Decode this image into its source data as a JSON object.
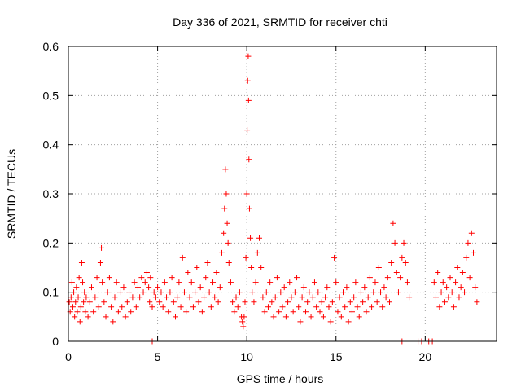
{
  "chart_data": {
    "type": "scatter",
    "title": "Day 336 of 2021, SRMTID for receiver chti",
    "xlabel": "GPS time / hours",
    "ylabel": "SRMTID / TECUs",
    "xlim": [
      0,
      24
    ],
    "ylim": [
      0,
      0.6
    ],
    "xticks": [
      0,
      5,
      10,
      15,
      20
    ],
    "xtick_labels": [
      "0",
      "5",
      "10",
      "15",
      "20"
    ],
    "yticks": [
      0,
      0.1,
      0.2,
      0.3,
      0.4,
      0.5,
      0.6
    ],
    "ytick_labels": [
      "0",
      "0.1",
      "0.2",
      "0.3",
      "0.4",
      "0.5",
      "0.6"
    ],
    "grid": true,
    "marker": "+",
    "series": [
      {
        "name": "SRMTID",
        "color": "#ff0000",
        "points": [
          [
            0.05,
            0.08
          ],
          [
            0.1,
            0.06
          ],
          [
            0.15,
            0.09
          ],
          [
            0.2,
            0.12
          ],
          [
            0.25,
            0.07
          ],
          [
            0.3,
            0.1
          ],
          [
            0.35,
            0.05
          ],
          [
            0.4,
            0.08
          ],
          [
            0.45,
            0.11
          ],
          [
            0.5,
            0.06
          ],
          [
            0.55,
            0.09
          ],
          [
            0.6,
            0.13
          ],
          [
            0.65,
            0.04
          ],
          [
            0.7,
            0.07
          ],
          [
            0.75,
            0.16
          ],
          [
            0.8,
            0.12
          ],
          [
            0.85,
            0.08
          ],
          [
            0.9,
            0.1
          ],
          [
            0.95,
            0.06
          ],
          [
            1.0,
            0.09
          ],
          [
            1.1,
            0.05
          ],
          [
            1.2,
            0.08
          ],
          [
            1.3,
            0.11
          ],
          [
            1.4,
            0.06
          ],
          [
            1.5,
            0.09
          ],
          [
            1.6,
            0.13
          ],
          [
            1.7,
            0.07
          ],
          [
            1.8,
            0.16
          ],
          [
            1.85,
            0.19
          ],
          [
            1.9,
            0.12
          ],
          [
            2.0,
            0.08
          ],
          [
            2.1,
            0.05
          ],
          [
            2.2,
            0.1
          ],
          [
            2.3,
            0.13
          ],
          [
            2.4,
            0.07
          ],
          [
            2.5,
            0.04
          ],
          [
            2.6,
            0.09
          ],
          [
            2.7,
            0.12
          ],
          [
            2.8,
            0.06
          ],
          [
            2.9,
            0.1
          ],
          [
            3.0,
            0.07
          ],
          [
            3.1,
            0.11
          ],
          [
            3.2,
            0.05
          ],
          [
            3.3,
            0.08
          ],
          [
            3.4,
            0.1
          ],
          [
            3.5,
            0.06
          ],
          [
            3.6,
            0.09
          ],
          [
            3.7,
            0.12
          ],
          [
            3.8,
            0.07
          ],
          [
            3.9,
            0.11
          ],
          [
            4.0,
            0.09
          ],
          [
            4.1,
            0.13
          ],
          [
            4.2,
            0.1
          ],
          [
            4.3,
            0.12
          ],
          [
            4.4,
            0.14
          ],
          [
            4.5,
            0.11
          ],
          [
            4.55,
            0.08
          ],
          [
            4.6,
            0.13
          ],
          [
            4.7,
            0.07
          ],
          [
            4.8,
            0.1
          ],
          [
            4.9,
            0.09
          ],
          [
            5.0,
            0.11
          ],
          [
            5.1,
            0.08
          ],
          [
            5.2,
            0.1
          ],
          [
            5.3,
            0.07
          ],
          [
            5.4,
            0.12
          ],
          [
            5.5,
            0.09
          ],
          [
            5.6,
            0.06
          ],
          [
            5.7,
            0.1
          ],
          [
            5.8,
            0.13
          ],
          [
            5.9,
            0.08
          ],
          [
            6.0,
            0.05
          ],
          [
            6.1,
            0.09
          ],
          [
            6.2,
            0.12
          ],
          [
            6.3,
            0.07
          ],
          [
            6.4,
            0.17
          ],
          [
            6.5,
            0.1
          ],
          [
            6.6,
            0.06
          ],
          [
            6.7,
            0.14
          ],
          [
            6.8,
            0.09
          ],
          [
            6.9,
            0.12
          ],
          [
            7.0,
            0.07
          ],
          [
            7.1,
            0.1
          ],
          [
            7.2,
            0.15
          ],
          [
            7.3,
            0.08
          ],
          [
            7.4,
            0.11
          ],
          [
            7.5,
            0.06
          ],
          [
            7.6,
            0.09
          ],
          [
            7.7,
            0.13
          ],
          [
            7.8,
            0.16
          ],
          [
            7.9,
            0.1
          ],
          [
            8.0,
            0.07
          ],
          [
            8.1,
            0.12
          ],
          [
            8.2,
            0.09
          ],
          [
            8.3,
            0.14
          ],
          [
            8.4,
            0.08
          ],
          [
            8.5,
            0.11
          ],
          [
            8.6,
            0.18
          ],
          [
            8.7,
            0.22
          ],
          [
            8.75,
            0.27
          ],
          [
            8.8,
            0.35
          ],
          [
            8.85,
            0.3
          ],
          [
            8.9,
            0.24
          ],
          [
            8.95,
            0.2
          ],
          [
            9.0,
            0.16
          ],
          [
            9.1,
            0.12
          ],
          [
            9.2,
            0.08
          ],
          [
            9.3,
            0.06
          ],
          [
            9.4,
            0.09
          ],
          [
            9.5,
            0.07
          ],
          [
            9.6,
            0.1
          ],
          [
            9.7,
            0.05
          ],
          [
            9.75,
            0.04
          ],
          [
            9.8,
            0.03
          ],
          [
            9.85,
            0.05
          ],
          [
            9.9,
            0.08
          ],
          [
            9.95,
            0.17
          ],
          [
            10.0,
            0.3
          ],
          [
            10.02,
            0.43
          ],
          [
            10.05,
            0.53
          ],
          [
            10.08,
            0.58
          ],
          [
            10.1,
            0.49
          ],
          [
            10.12,
            0.37
          ],
          [
            10.15,
            0.27
          ],
          [
            10.2,
            0.21
          ],
          [
            10.25,
            0.15
          ],
          [
            10.3,
            0.1
          ],
          [
            10.4,
            0.08
          ],
          [
            10.5,
            0.12
          ],
          [
            10.6,
            0.18
          ],
          [
            10.7,
            0.21
          ],
          [
            10.8,
            0.15
          ],
          [
            10.9,
            0.09
          ],
          [
            11.0,
            0.06
          ],
          [
            11.1,
            0.1
          ],
          [
            11.2,
            0.07
          ],
          [
            11.3,
            0.12
          ],
          [
            11.4,
            0.08
          ],
          [
            11.5,
            0.05
          ],
          [
            11.6,
            0.09
          ],
          [
            11.7,
            0.13
          ],
          [
            11.8,
            0.06
          ],
          [
            11.9,
            0.1
          ],
          [
            12.0,
            0.07
          ],
          [
            12.1,
            0.11
          ],
          [
            12.2,
            0.05
          ],
          [
            12.3,
            0.08
          ],
          [
            12.4,
            0.12
          ],
          [
            12.5,
            0.09
          ],
          [
            12.6,
            0.06
          ],
          [
            12.7,
            0.1
          ],
          [
            12.8,
            0.13
          ],
          [
            12.9,
            0.07
          ],
          [
            13.0,
            0.04
          ],
          [
            13.1,
            0.09
          ],
          [
            13.2,
            0.11
          ],
          [
            13.3,
            0.06
          ],
          [
            13.4,
            0.08
          ],
          [
            13.5,
            0.1
          ],
          [
            13.6,
            0.05
          ],
          [
            13.7,
            0.09
          ],
          [
            13.8,
            0.12
          ],
          [
            13.9,
            0.07
          ],
          [
            14.0,
            0.1
          ],
          [
            14.1,
            0.06
          ],
          [
            14.2,
            0.08
          ],
          [
            14.3,
            0.05
          ],
          [
            14.4,
            0.09
          ],
          [
            14.5,
            0.11
          ],
          [
            14.6,
            0.07
          ],
          [
            14.7,
            0.04
          ],
          [
            14.8,
            0.08
          ],
          [
            14.9,
            0.17
          ],
          [
            15.0,
            0.12
          ],
          [
            15.1,
            0.06
          ],
          [
            15.2,
            0.09
          ],
          [
            15.3,
            0.05
          ],
          [
            15.4,
            0.1
          ],
          [
            15.5,
            0.07
          ],
          [
            15.6,
            0.11
          ],
          [
            15.7,
            0.04
          ],
          [
            15.8,
            0.08
          ],
          [
            15.9,
            0.06
          ],
          [
            16.0,
            0.09
          ],
          [
            16.1,
            0.12
          ],
          [
            16.2,
            0.07
          ],
          [
            16.3,
            0.05
          ],
          [
            16.4,
            0.1
          ],
          [
            16.5,
            0.08
          ],
          [
            16.6,
            0.11
          ],
          [
            16.7,
            0.06
          ],
          [
            16.8,
            0.09
          ],
          [
            16.9,
            0.13
          ],
          [
            17.0,
            0.07
          ],
          [
            17.1,
            0.1
          ],
          [
            17.2,
            0.12
          ],
          [
            17.3,
            0.08
          ],
          [
            17.4,
            0.15
          ],
          [
            17.5,
            0.1
          ],
          [
            17.6,
            0.07
          ],
          [
            17.7,
            0.11
          ],
          [
            17.8,
            0.09
          ],
          [
            17.9,
            0.13
          ],
          [
            18.0,
            0.08
          ],
          [
            18.1,
            0.16
          ],
          [
            18.2,
            0.24
          ],
          [
            18.3,
            0.2
          ],
          [
            18.4,
            0.14
          ],
          [
            18.5,
            0.1
          ],
          [
            18.6,
            0.13
          ],
          [
            18.7,
            0.17
          ],
          [
            18.8,
            0.2
          ],
          [
            18.9,
            0.16
          ],
          [
            19.0,
            0.12
          ],
          [
            19.1,
            0.09
          ],
          [
            20.5,
            0.12
          ],
          [
            20.6,
            0.09
          ],
          [
            20.7,
            0.14
          ],
          [
            20.8,
            0.07
          ],
          [
            20.9,
            0.1
          ],
          [
            21.0,
            0.12
          ],
          [
            21.1,
            0.08
          ],
          [
            21.2,
            0.11
          ],
          [
            21.3,
            0.09
          ],
          [
            21.4,
            0.13
          ],
          [
            21.5,
            0.1
          ],
          [
            21.6,
            0.07
          ],
          [
            21.7,
            0.12
          ],
          [
            21.8,
            0.15
          ],
          [
            21.9,
            0.09
          ],
          [
            22.0,
            0.11
          ],
          [
            22.1,
            0.14
          ],
          [
            22.2,
            0.1
          ],
          [
            22.3,
            0.17
          ],
          [
            22.4,
            0.2
          ],
          [
            22.5,
            0.13
          ],
          [
            22.6,
            0.22
          ],
          [
            22.7,
            0.18
          ],
          [
            22.8,
            0.11
          ],
          [
            22.9,
            0.08
          ],
          [
            4.7,
            0.0
          ],
          [
            18.7,
            0.0
          ],
          [
            19.6,
            0.0
          ],
          [
            19.8,
            0.0
          ],
          [
            20.2,
            0.0
          ],
          [
            20.4,
            0.0
          ]
        ]
      }
    ]
  }
}
